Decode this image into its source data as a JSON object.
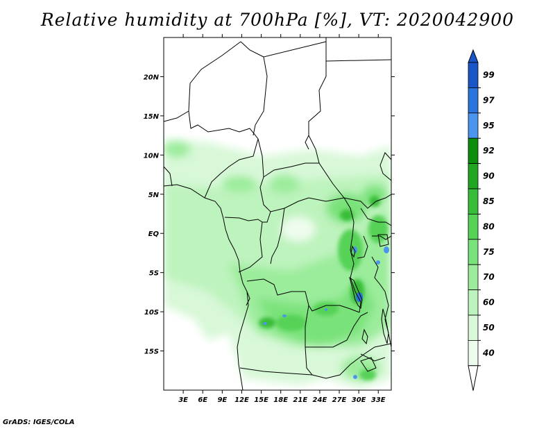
{
  "title": "Relative humidity at 700hPa [%], VT: 2020042900",
  "footer": "GrADS: IGES/COLA",
  "map": {
    "lon_range": [
      0,
      35
    ],
    "lat_range": [
      -20,
      25
    ],
    "lon_ticks": [
      "3E",
      "6E",
      "9E",
      "12E",
      "15E",
      "18E",
      "21E",
      "24E",
      "27E",
      "30E",
      "33E"
    ],
    "lat_ticks": [
      "20N",
      "15N",
      "10N",
      "5N",
      "EQ",
      "5S",
      "10S",
      "15S"
    ]
  },
  "colorbar": {
    "levels": [
      "99",
      "97",
      "95",
      "92",
      "90",
      "85",
      "80",
      "75",
      "70",
      "60",
      "50",
      "40"
    ],
    "colors": [
      "#1a55c8",
      "#2a74dd",
      "#4a96ef",
      "#0c8e0c",
      "#21a621",
      "#37bd37",
      "#56d256",
      "#7ae27a",
      "#9bec9b",
      "#bdf3bd",
      "#d8f8d8",
      "#eefcee"
    ],
    "top_arrow_color": "#1a55c8",
    "bottom_arrow_color": "#ffffff"
  }
}
